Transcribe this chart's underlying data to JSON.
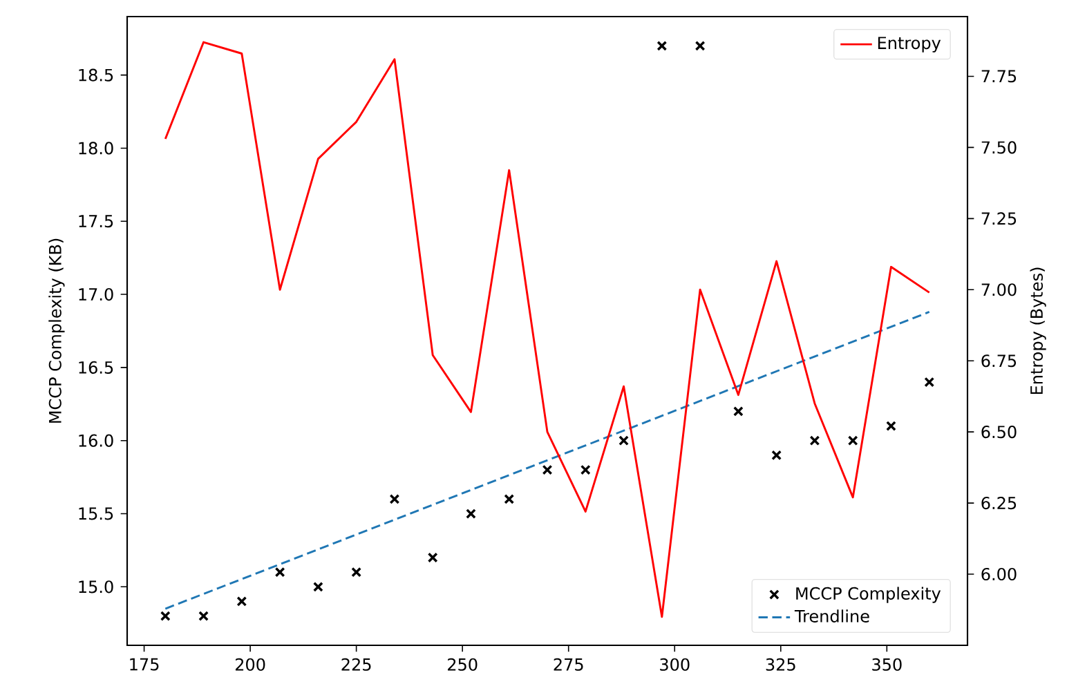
{
  "chart_data": {
    "type": "scatter",
    "ylabel": "MCCP Complexity (KB)",
    "y2label": "Entropy (Bytes)",
    "x": [
      180,
      189,
      198,
      207,
      216,
      225,
      234,
      243,
      252,
      261,
      270,
      279,
      288,
      297,
      306,
      315,
      324,
      333,
      342,
      351,
      360
    ],
    "series": [
      {
        "name": "MCCP Complexity",
        "marker": "cross",
        "color": "#000000",
        "values": [
          14.8,
          14.8,
          14.9,
          15.1,
          15.0,
          15.1,
          15.6,
          15.2,
          15.5,
          15.6,
          15.8,
          15.8,
          16.0,
          18.7,
          18.7,
          16.2,
          15.9,
          16.0,
          16.0,
          16.1,
          16.4
        ]
      },
      {
        "name": "Trendline",
        "type": "line",
        "line_style": "dashed",
        "color": "#1f77b4",
        "x": [
          180,
          360
        ],
        "values": [
          14.85,
          16.88
        ]
      },
      {
        "name": "Entropy",
        "type": "line",
        "axis": "y2",
        "color": "#ff0000",
        "values": [
          7.53,
          7.87,
          7.83,
          7.0,
          7.46,
          7.59,
          7.81,
          6.77,
          6.57,
          7.42,
          6.5,
          6.22,
          6.66,
          5.85,
          7.0,
          6.63,
          7.1,
          6.6,
          6.27,
          7.08,
          6.99
        ]
      }
    ],
    "xlim": [
      171,
      369
    ],
    "xticks": [
      175,
      200,
      225,
      250,
      275,
      300,
      325,
      350
    ],
    "ylim": [
      14.6,
      18.9
    ],
    "yticks": [
      {
        "value": 15,
        "label": "15.0"
      },
      {
        "value": 15.5,
        "label": "15.5"
      },
      {
        "value": 16,
        "label": "16.0"
      },
      {
        "value": 16.5,
        "label": "16.5"
      },
      {
        "value": 17,
        "label": "17.0"
      },
      {
        "value": 17.5,
        "label": "17.5"
      },
      {
        "value": 18,
        "label": "18.0"
      },
      {
        "value": 18.5,
        "label": "18.5"
      }
    ],
    "y2lim": [
      5.75,
      7.96
    ],
    "y2ticks": [
      {
        "value": 6,
        "label": "6.00"
      },
      {
        "value": 6.25,
        "label": "6.25"
      },
      {
        "value": 6.5,
        "label": "6.50"
      },
      {
        "value": 6.75,
        "label": "6.75"
      },
      {
        "value": 7,
        "label": "7.00"
      },
      {
        "value": 7.25,
        "label": "7.25"
      },
      {
        "value": 7.5,
        "label": "7.50"
      },
      {
        "value": 7.75,
        "label": "7.75"
      }
    ],
    "grid": false,
    "legend": "right"
  }
}
